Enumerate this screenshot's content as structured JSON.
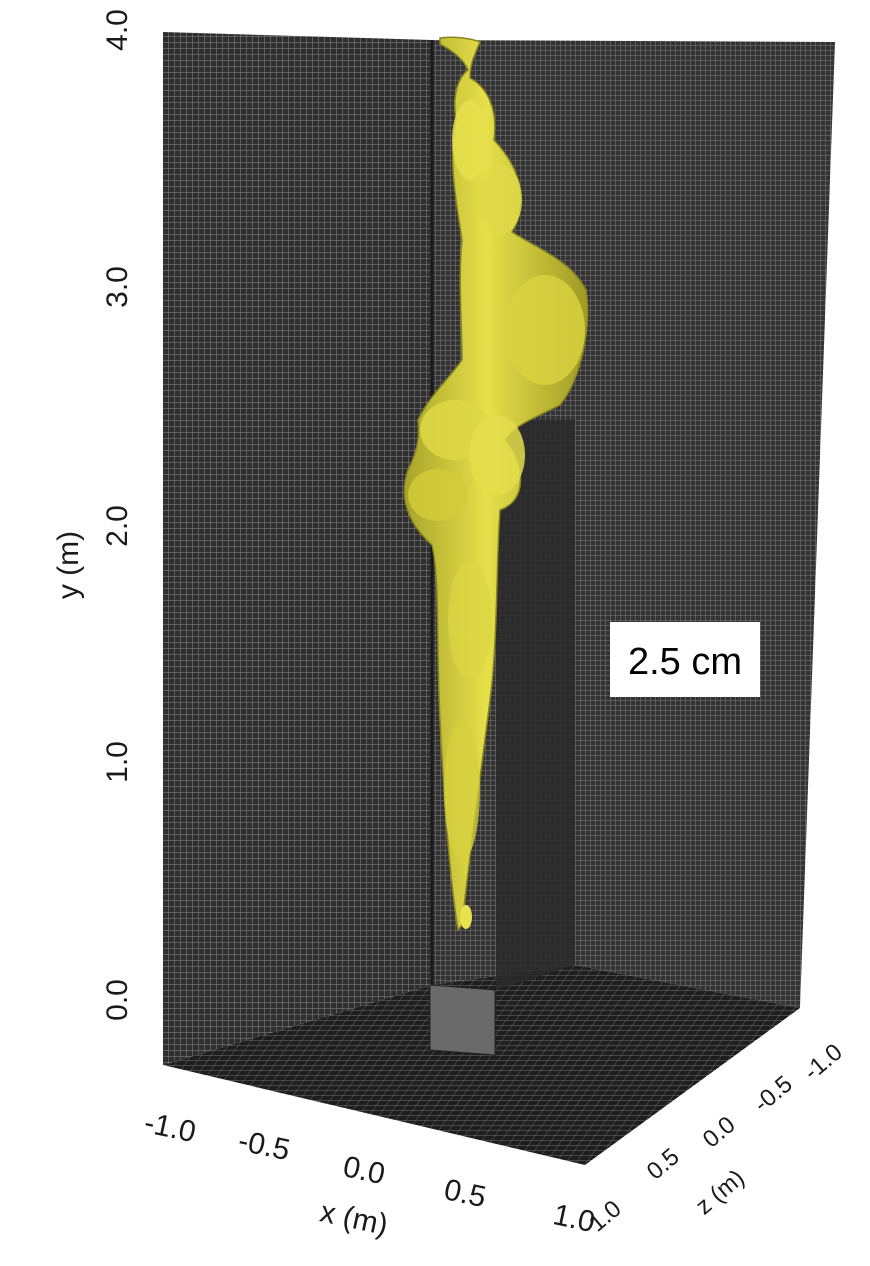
{
  "chart_data": {
    "type": "3d-isosurface",
    "title": "",
    "annotation": "2.5 cm",
    "axes": {
      "x": {
        "label": "x (m)",
        "range": [
          -1.0,
          1.0
        ],
        "ticks": [
          "-1.0",
          "-0.5",
          "0.0",
          "0.5",
          "1.0"
        ]
      },
      "y": {
        "label": "y (m)",
        "range": [
          0.0,
          4.0
        ],
        "ticks": [
          "0.0",
          "1.0",
          "2.0",
          "3.0",
          "4.0"
        ]
      },
      "z": {
        "label": "z (m)",
        "range": [
          -1.0,
          1.0
        ],
        "ticks": [
          "1.0",
          "0.5",
          "0.0",
          "-0.5",
          "-1.0"
        ]
      }
    },
    "grid": true,
    "surface_color": "#d9d43a",
    "background_color": "#3a3a3a"
  }
}
